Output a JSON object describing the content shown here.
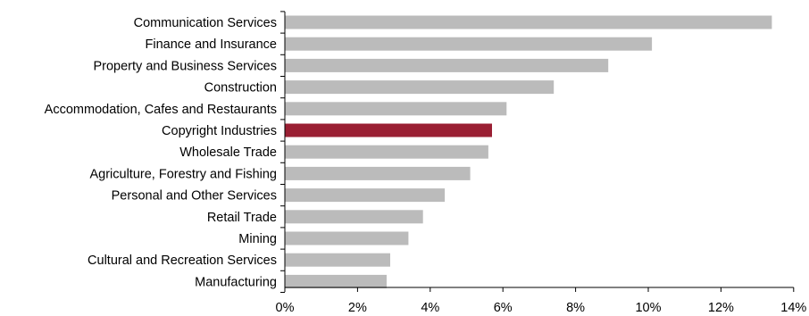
{
  "chart_data": {
    "type": "bar",
    "orientation": "horizontal",
    "categories": [
      "Communication Services",
      "Finance and Insurance",
      "Property and Business Services",
      "Construction",
      "Accommodation, Cafes and Restaurants",
      "Copyright Industries",
      "Wholesale Trade",
      "Agriculture, Forestry and Fishing",
      "Personal and Other Services",
      "Retail Trade",
      "Mining",
      "Cultural and Recreation Services",
      "Manufacturing"
    ],
    "values": [
      13.4,
      10.1,
      8.9,
      7.4,
      6.1,
      5.7,
      5.6,
      5.1,
      4.4,
      3.8,
      3.4,
      2.9,
      2.8
    ],
    "highlight_category": "Copyright Industries",
    "colors": {
      "bar": "#bbbbbb",
      "highlight": "#9a1f33"
    },
    "xlim": [
      0,
      14
    ],
    "xticks": [
      0,
      2,
      4,
      6,
      8,
      10,
      12,
      14
    ],
    "xtick_labels": [
      "0%",
      "2%",
      "4%",
      "6%",
      "8%",
      "10%",
      "12%",
      "14%"
    ],
    "grid": false,
    "title": "",
    "xlabel": "",
    "ylabel": ""
  }
}
